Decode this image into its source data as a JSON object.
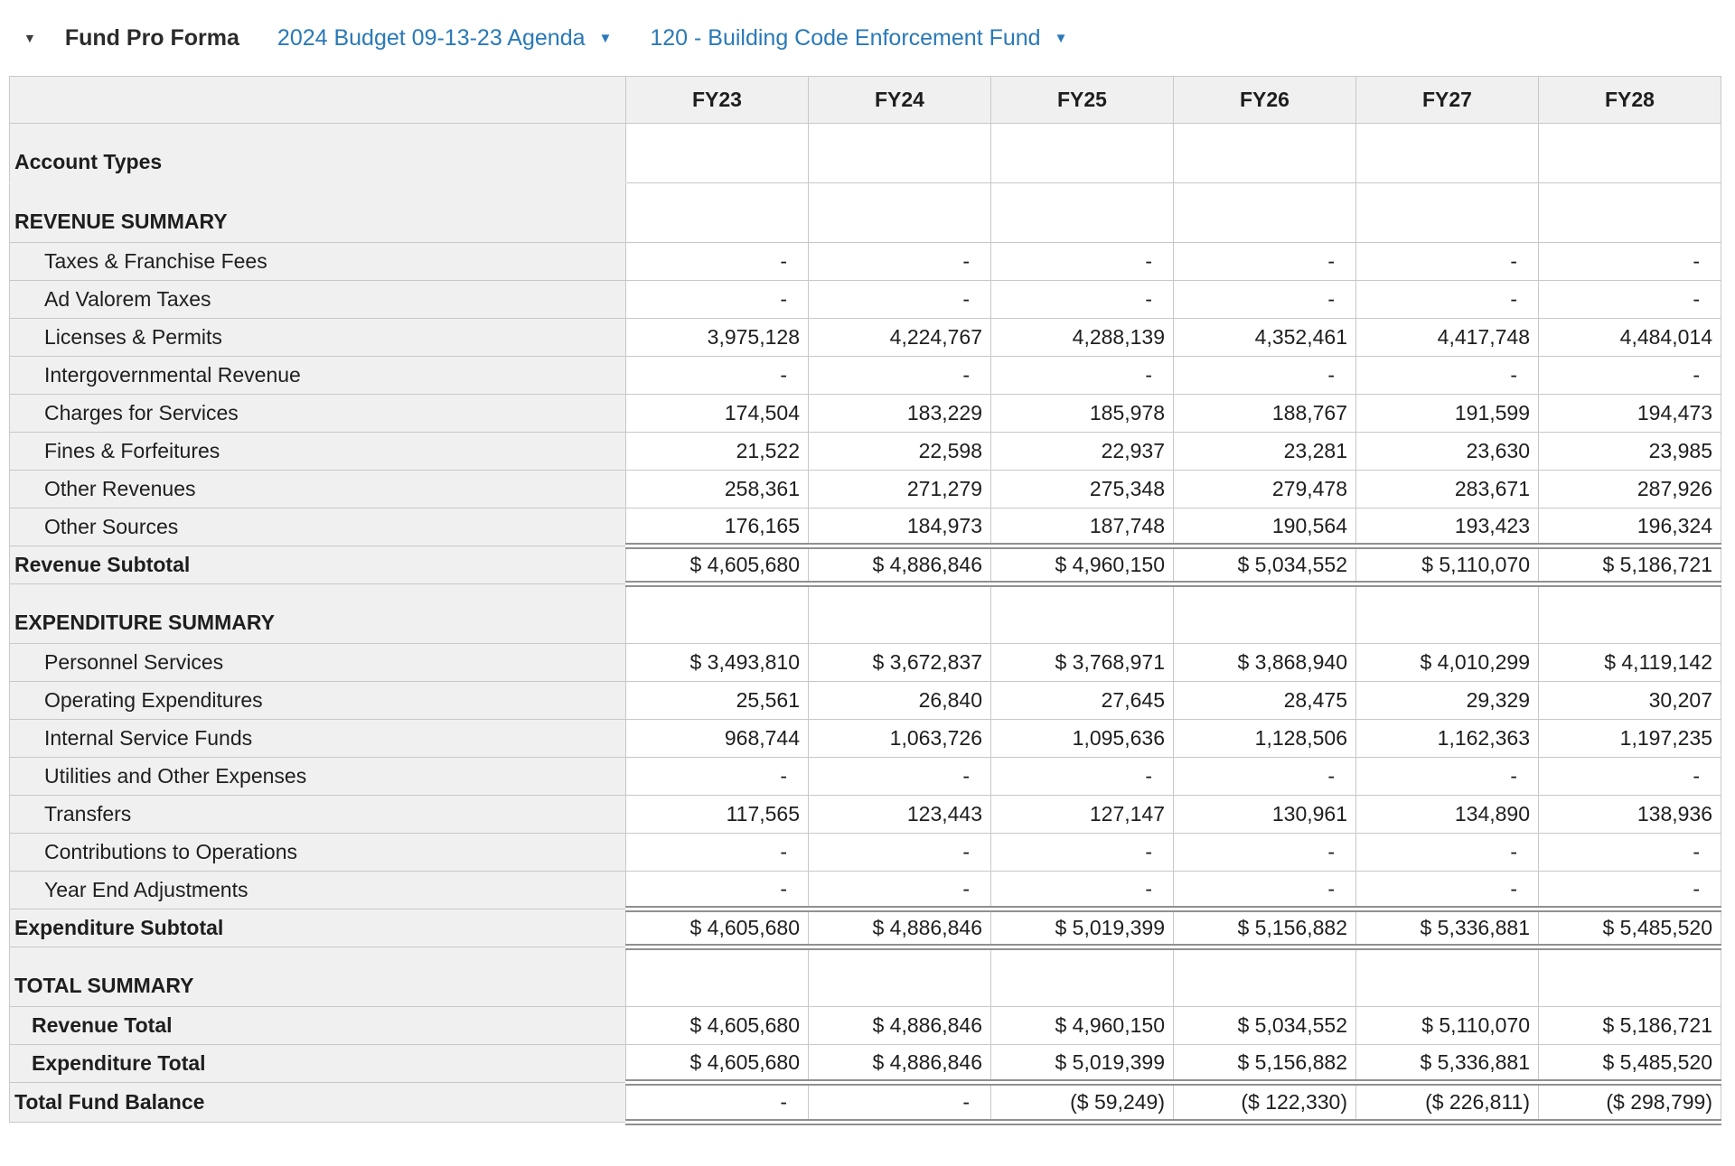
{
  "header": {
    "collapse_icon": "▼",
    "dropdown_icon": "▼",
    "title": "Fund Pro Forma",
    "budget_selector": "2024 Budget 09-13-23 Agenda",
    "fund_selector": "120 - Building Code Enforcement Fund"
  },
  "colors": {
    "link_blue": "#2A79B8",
    "table_header_bg": "#F0F0F0",
    "grid_border": "#C8C8C8",
    "double_border": "#909090",
    "text": "#1E1E1E"
  },
  "table": {
    "columns": [
      "FY23",
      "FY24",
      "FY25",
      "FY26",
      "FY27",
      "FY28"
    ],
    "rows": [
      {
        "label": "Account Types",
        "kind": "group-first",
        "values": [
          "",
          "",
          "",
          "",
          "",
          ""
        ]
      },
      {
        "label": "REVENUE SUMMARY",
        "kind": "group",
        "values": [
          "",
          "",
          "",
          "",
          "",
          ""
        ]
      },
      {
        "label": "Taxes & Franchise Fees",
        "kind": "data",
        "values": [
          "-",
          "-",
          "-",
          "-",
          "-",
          "-"
        ]
      },
      {
        "label": "Ad Valorem Taxes",
        "kind": "data",
        "values": [
          "-",
          "-",
          "-",
          "-",
          "-",
          "-"
        ]
      },
      {
        "label": "Licenses & Permits",
        "kind": "data",
        "values": [
          "3,975,128",
          "4,224,767",
          "4,288,139",
          "4,352,461",
          "4,417,748",
          "4,484,014"
        ]
      },
      {
        "label": "Intergovernmental Revenue",
        "kind": "data",
        "values": [
          "-",
          "-",
          "-",
          "-",
          "-",
          "-"
        ]
      },
      {
        "label": "Charges for Services",
        "kind": "data",
        "values": [
          "174,504",
          "183,229",
          "185,978",
          "188,767",
          "191,599",
          "194,473"
        ]
      },
      {
        "label": "Fines & Forfeitures",
        "kind": "data",
        "values": [
          "21,522",
          "22,598",
          "22,937",
          "23,281",
          "23,630",
          "23,985"
        ]
      },
      {
        "label": "Other Revenues",
        "kind": "data",
        "values": [
          "258,361",
          "271,279",
          "275,348",
          "279,478",
          "283,671",
          "287,926"
        ]
      },
      {
        "label": "Other Sources",
        "kind": "data",
        "values": [
          "176,165",
          "184,973",
          "187,748",
          "190,564",
          "193,423",
          "196,324"
        ]
      },
      {
        "label": "Revenue Subtotal",
        "kind": "subtotal",
        "values": [
          "$ 4,605,680",
          "$ 4,886,846",
          "$ 4,960,150",
          "$ 5,034,552",
          "$ 5,110,070",
          "$ 5,186,721"
        ]
      },
      {
        "label": "EXPENDITURE SUMMARY",
        "kind": "group",
        "values": [
          "",
          "",
          "",
          "",
          "",
          ""
        ]
      },
      {
        "label": "Personnel Services",
        "kind": "data",
        "values": [
          "$ 3,493,810",
          "$ 3,672,837",
          "$ 3,768,971",
          "$ 3,868,940",
          "$ 4,010,299",
          "$ 4,119,142"
        ]
      },
      {
        "label": "Operating Expenditures",
        "kind": "data",
        "values": [
          "25,561",
          "26,840",
          "27,645",
          "28,475",
          "29,329",
          "30,207"
        ]
      },
      {
        "label": "Internal Service Funds",
        "kind": "data",
        "values": [
          "968,744",
          "1,063,726",
          "1,095,636",
          "1,128,506",
          "1,162,363",
          "1,197,235"
        ]
      },
      {
        "label": "Utilities and Other Expenses",
        "kind": "data",
        "values": [
          "-",
          "-",
          "-",
          "-",
          "-",
          "-"
        ]
      },
      {
        "label": "Transfers",
        "kind": "data",
        "values": [
          "117,565",
          "123,443",
          "127,147",
          "130,961",
          "134,890",
          "138,936"
        ]
      },
      {
        "label": "Contributions to Operations",
        "kind": "data",
        "values": [
          "-",
          "-",
          "-",
          "-",
          "-",
          "-"
        ]
      },
      {
        "label": "Year End Adjustments",
        "kind": "data",
        "values": [
          "-",
          "-",
          "-",
          "-",
          "-",
          "-"
        ]
      },
      {
        "label": "Expenditure Subtotal",
        "kind": "subtotal",
        "values": [
          "$ 4,605,680",
          "$ 4,886,846",
          "$ 5,019,399",
          "$ 5,156,882",
          "$ 5,336,881",
          "$ 5,485,520"
        ]
      },
      {
        "label": "TOTAL SUMMARY",
        "kind": "group",
        "values": [
          "",
          "",
          "",
          "",
          "",
          ""
        ]
      },
      {
        "label": "Revenue Total",
        "kind": "total",
        "values": [
          "$ 4,605,680",
          "$ 4,886,846",
          "$ 4,960,150",
          "$ 5,034,552",
          "$ 5,110,070",
          "$ 5,186,721"
        ]
      },
      {
        "label": "Expenditure Total",
        "kind": "total-dblb",
        "values": [
          "$ 4,605,680",
          "$ 4,886,846",
          "$ 5,019,399",
          "$ 5,156,882",
          "$ 5,336,881",
          "$ 5,485,520"
        ]
      },
      {
        "label": "Total Fund Balance",
        "kind": "grand",
        "values": [
          "-",
          "-",
          "($ 59,249)",
          "($ 122,330)",
          "($ 226,811)",
          "($ 298,799)"
        ]
      }
    ]
  }
}
